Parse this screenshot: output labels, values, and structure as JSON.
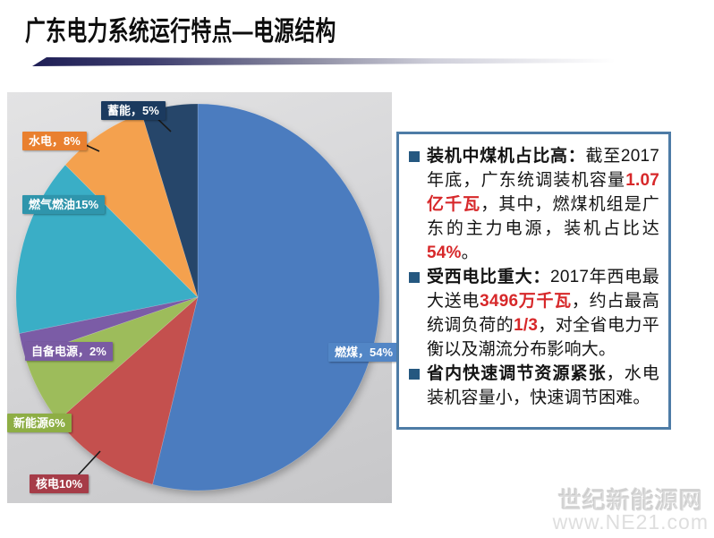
{
  "title": "广东电力系统运行特点—电源结构",
  "chart_data": {
    "type": "pie",
    "title": "",
    "unit": "%",
    "total": 100,
    "start_angle_deg": 0,
    "direction": "clockwise",
    "legend": "none",
    "slices": [
      {
        "id": "coal",
        "name": "燃煤",
        "value": 54,
        "label": "燃煤，54%",
        "color": "#4B7CBF",
        "label_bg": "#5286C6"
      },
      {
        "id": "nuclear",
        "name": "核电",
        "value": 10,
        "label": "核电10%",
        "color": "#C4504E",
        "label_bg": "#A63C48"
      },
      {
        "id": "new-energy",
        "name": "新能源",
        "value": 6,
        "label": "新能源6%",
        "color": "#9DBC5B",
        "label_bg": "#8EAE45"
      },
      {
        "id": "self-supply",
        "name": "自备电源",
        "value": 2,
        "label": "自备电源，2%",
        "color": "#7B5CA6",
        "label_bg": "#7A5BA3"
      },
      {
        "id": "gas-oil",
        "name": "燃气燃油",
        "value": 15,
        "label": "燃气燃油15%",
        "color": "#3AAEC6",
        "label_bg": "#2F95AC"
      },
      {
        "id": "hydro",
        "name": "水电",
        "value": 8,
        "label": "水电，8%",
        "color": "#F4A14E",
        "label_bg": "#E9802F"
      },
      {
        "id": "pumped-storage",
        "name": "蓄能",
        "value": 5,
        "label": "蓄能，5%",
        "color": "#26466A",
        "label_bg": "#1B3A5F"
      }
    ]
  },
  "infobox": {
    "border_color": "#4E7CA6",
    "highlight_color": "#d7282a",
    "bullets": [
      {
        "segments": [
          {
            "style": "bold",
            "text": "装机中煤机占比高："
          },
          {
            "style": "normal",
            "text": "截至2017年底，广东统调装机容量"
          },
          {
            "style": "red",
            "text": "1.07亿千瓦"
          },
          {
            "style": "normal",
            "text": "，其中，燃煤机组是广东的主力电源，装机占比达"
          },
          {
            "style": "red",
            "text": "54%"
          },
          {
            "style": "normal",
            "text": "。"
          }
        ]
      },
      {
        "segments": [
          {
            "style": "bold",
            "text": "受西电比重大："
          },
          {
            "style": "normal",
            "text": "2017年西电最大送电"
          },
          {
            "style": "red",
            "text": "3496万千瓦"
          },
          {
            "style": "normal",
            "text": "，约占最高统调负荷的"
          },
          {
            "style": "red",
            "text": "1/3"
          },
          {
            "style": "normal",
            "text": "，对全省电力平衡以及潮流分布影响大。"
          }
        ]
      },
      {
        "segments": [
          {
            "style": "bold",
            "text": "省内快速调节资源紧张"
          },
          {
            "style": "normal",
            "text": "，水电装机容量小，快速调节困难。"
          }
        ]
      }
    ]
  },
  "watermark": {
    "line1": "世纪新能源网",
    "line2": "www.NE21.com"
  }
}
